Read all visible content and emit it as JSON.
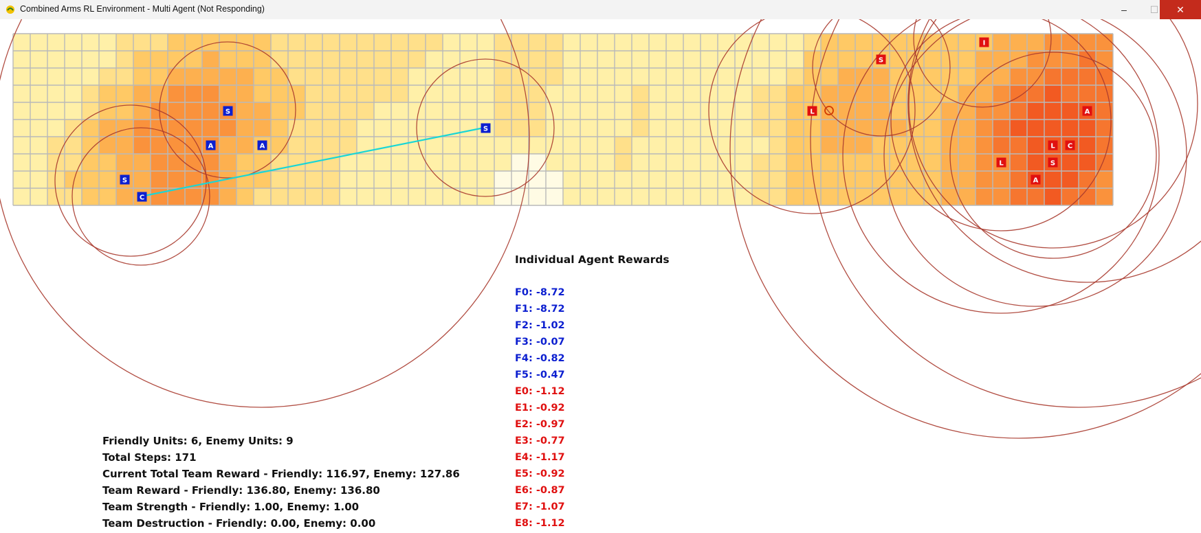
{
  "window": {
    "title": "Combined Arms RL Environment - Multi Agent (Not Responding)",
    "minimize_glyph": "–",
    "maximize_glyph": "☐",
    "close_glyph": "✕",
    "app_icon": "pygame-snake-icon"
  },
  "colors": {
    "friendly": "#0c1fd0",
    "enemy": "#e01010",
    "grid_line": "#b9b9b9",
    "range_circle": "#a83a2e",
    "los_line": "#19d6d6",
    "heat_0": "#fffbe4",
    "heat_1": "#fff0a8",
    "heat_2": "#ffe08a",
    "heat_3": "#ffc965",
    "heat_4": "#fdb04f",
    "heat_5": "#fa923c",
    "heat_6": "#f6762f",
    "heat_7": "#f25a22"
  },
  "grid": {
    "columns": 64,
    "rows": 10
  },
  "heatmap": [
    "1111112223333332222222222111222211111111111111233333333334445555",
    "1111112333343332222222221111222211111111111111333333333344455565",
    "1111122334444433222222211111222211111111111112334443333344556666",
    "1111233445554433322222211111222111112111111223344443333445667666",
    "1111233455555443322221111111222111112111111223344443334455677776",
    "1112344555555443222211111111222111112111111223344444334456777776",
    "1122344555554433222211111111111111121111111123344433334456677776",
    "1122334455554332222111111111100111121111111223333333334455677776",
    "1123334455554332222111111111000011111111111223333333334455677765",
    "1122334455554322222111111111000011111111111223333333334455667665"
  ],
  "friendly_units": [
    {
      "type": "S",
      "col": 12,
      "row": 4
    },
    {
      "type": "A",
      "col": 11,
      "row": 6
    },
    {
      "type": "A",
      "col": 14,
      "row": 6
    },
    {
      "type": "S",
      "col": 6,
      "row": 8
    },
    {
      "type": "C",
      "col": 7,
      "row": 9
    },
    {
      "type": "S",
      "col": 27,
      "row": 5
    }
  ],
  "enemy_units": [
    {
      "type": "I",
      "col": 56,
      "row": 0
    },
    {
      "type": "S",
      "col": 50,
      "row": 1
    },
    {
      "type": "L",
      "col": 46,
      "row": 4
    },
    {
      "type": "A",
      "col": 62,
      "row": 4
    },
    {
      "type": "L",
      "col": 60,
      "row": 6
    },
    {
      "type": "C",
      "col": 61,
      "row": 6
    },
    {
      "type": "L",
      "col": 57,
      "row": 7
    },
    {
      "type": "S",
      "col": 60,
      "row": 7
    },
    {
      "type": "A",
      "col": 59,
      "row": 8
    }
  ],
  "rewards_panel": {
    "title": "Individual Agent Rewards",
    "rows": [
      {
        "label": "F0: -8.72",
        "side": "friendly"
      },
      {
        "label": "F1: -8.72",
        "side": "friendly"
      },
      {
        "label": "F2: -1.02",
        "side": "friendly"
      },
      {
        "label": "F3: -0.07",
        "side": "friendly"
      },
      {
        "label": "F4: -0.82",
        "side": "friendly"
      },
      {
        "label": "F5: -0.47",
        "side": "friendly"
      },
      {
        "label": "E0: -1.12",
        "side": "enemy"
      },
      {
        "label": "E1: -0.92",
        "side": "enemy"
      },
      {
        "label": "E2: -0.97",
        "side": "enemy"
      },
      {
        "label": "E3: -0.77",
        "side": "enemy"
      },
      {
        "label": "E4: -1.17",
        "side": "enemy"
      },
      {
        "label": "E5: -0.92",
        "side": "enemy"
      },
      {
        "label": "E6: -0.87",
        "side": "enemy"
      },
      {
        "label": "E7: -1.07",
        "side": "enemy"
      },
      {
        "label": "E8: -1.12",
        "side": "enemy"
      }
    ]
  },
  "stats": [
    "Friendly Units: 6, Enemy Units: 9",
    "Total Steps: 171",
    "Current Total Team Reward - Friendly: 116.97, Enemy: 127.86",
    "Team Reward - Friendly: 136.80, Enemy: 136.80",
    "Team Strength - Friendly: 1.00, Enemy: 1.00",
    "Team Destruction - Friendly: 0.00, Enemy: 0.00"
  ]
}
